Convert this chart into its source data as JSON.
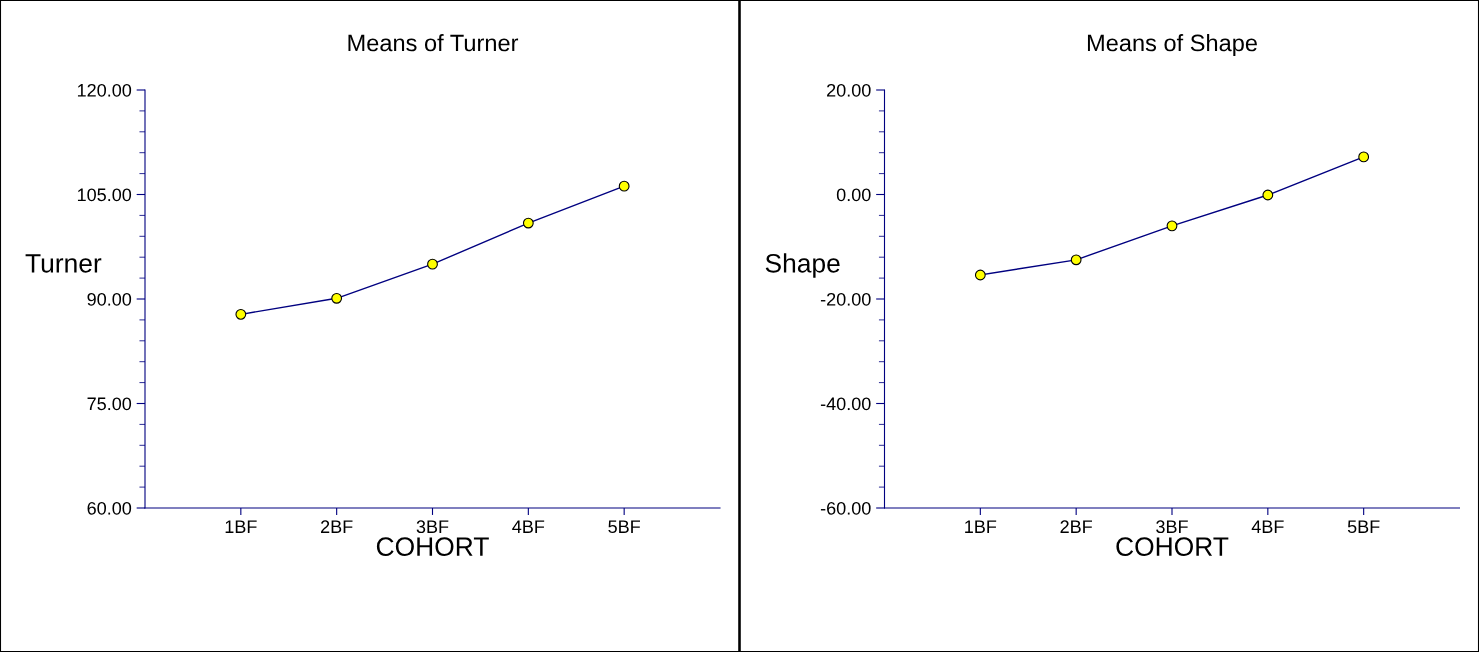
{
  "chart_data": [
    {
      "type": "line",
      "title": "Means of Turner",
      "xlabel": "COHORT",
      "ylabel": "Turner",
      "categories": [
        "1BF",
        "2BF",
        "3BF",
        "4BF",
        "5BF"
      ],
      "series": [
        {
          "color": "#000080",
          "values": [
            87.8,
            90.1,
            95.0,
            100.9,
            106.2
          ]
        }
      ],
      "ylim": [
        60,
        120
      ],
      "yticks": [
        {
          "value": 60,
          "label": "60.00"
        },
        {
          "value": 75,
          "label": "75.00"
        },
        {
          "value": 90,
          "label": "90.00"
        },
        {
          "value": 105,
          "label": "105.00"
        },
        {
          "value": 120,
          "label": "120.00"
        }
      ],
      "marker": "circle",
      "line_style": "solid",
      "grid": false,
      "legend": false
    },
    {
      "type": "line",
      "title": "Means of Shape",
      "xlabel": "COHORT",
      "ylabel": "Shape",
      "categories": [
        "1BF",
        "2BF",
        "3BF",
        "4BF",
        "5BF"
      ],
      "series": [
        {
          "color": "#000080",
          "values": [
            -15.4,
            -12.5,
            -6.0,
            -0.1,
            7.2
          ]
        }
      ],
      "ylim": [
        -60,
        20
      ],
      "yticks": [
        {
          "value": -60,
          "label": "-60.00"
        },
        {
          "value": -40,
          "label": "-40.00"
        },
        {
          "value": -20,
          "label": "-20.00"
        },
        {
          "value": 0,
          "label": "0.00"
        },
        {
          "value": 20,
          "label": "20.00"
        }
      ],
      "marker": "circle",
      "line_style": "solid",
      "grid": false,
      "legend": false
    }
  ]
}
